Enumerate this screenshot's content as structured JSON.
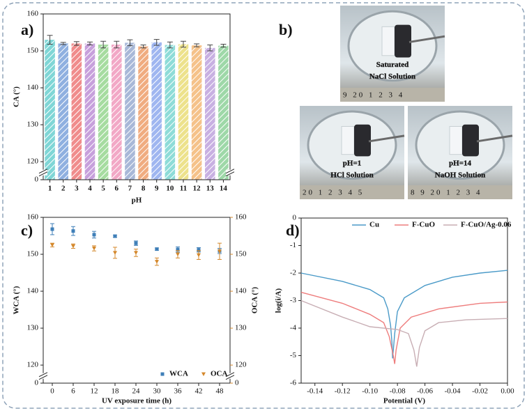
{
  "chart_data": [
    {
      "type": "bar",
      "label": "a)",
      "xlabel": "pH",
      "ylabel": "CA (°)",
      "categories": [
        "1",
        "2",
        "3",
        "4",
        "5",
        "6",
        "7",
        "8",
        "9",
        "10",
        "11",
        "12",
        "13",
        "14"
      ],
      "values": [
        153.0,
        152.0,
        152.0,
        152.0,
        151.7,
        151.7,
        152.2,
        151.2,
        152.3,
        151.6,
        151.8,
        151.5,
        150.8,
        151.4
      ],
      "errors": [
        1.2,
        0.3,
        0.5,
        0.4,
        0.9,
        0.9,
        0.8,
        0.4,
        0.8,
        0.8,
        0.8,
        0.4,
        0.8,
        0.4
      ],
      "colors": [
        "#7fd6d6",
        "#8fb0e0",
        "#f08c8c",
        "#c7a0dc",
        "#a6dca0",
        "#f2a8c6",
        "#a8b8d8",
        "#f0ac80",
        "#9fb6f0",
        "#8edcd8",
        "#ede28c",
        "#f5c28a",
        "#c8b0e2",
        "#9ed8a8"
      ],
      "ylim": [
        0,
        160
      ],
      "ybreak": [
        1,
        118
      ],
      "yticks": [
        0,
        120,
        130,
        140,
        150,
        160
      ]
    },
    {
      "type": "scatter",
      "label": "c)",
      "xlabel": "UV exposure time (h)",
      "ylabel": "WCA (°)",
      "y2label": "OCA (°)",
      "x": [
        0,
        6,
        12,
        18,
        24,
        30,
        36,
        42,
        48
      ],
      "xlim": [
        -2.6,
        51
      ],
      "xticks": [
        0,
        6,
        12,
        18,
        24,
        30,
        36,
        42,
        48
      ],
      "ylim": [
        0,
        160
      ],
      "ybreak": [
        1,
        118
      ],
      "yticks": [
        0,
        120,
        130,
        140,
        150,
        160
      ],
      "y2lim": [
        0,
        160
      ],
      "y2break": [
        1,
        118
      ],
      "y2ticks": [
        0,
        120,
        130,
        140,
        150,
        160
      ],
      "series": [
        {
          "name": "WCA",
          "color": "#3f7fb8",
          "marker": "square",
          "values": [
            156.8,
            156.3,
            155.3,
            154.9,
            153.0,
            151.4,
            151.3,
            151.2,
            150.9
          ],
          "errors": [
            1.5,
            1.2,
            0.9,
            0.3,
            0.6,
            0.3,
            0.7,
            0.6,
            0.7
          ]
        },
        {
          "name": "OCA",
          "color": "#d4882c",
          "marker": "triangle",
          "axis": "y2",
          "values": [
            152.5,
            152.2,
            151.6,
            150.4,
            150.4,
            148.0,
            150.0,
            149.8,
            150.8
          ],
          "errors": [
            0.5,
            0.6,
            0.7,
            1.5,
            1.0,
            1.0,
            1.0,
            1.2,
            2.2
          ]
        }
      ]
    },
    {
      "type": "line",
      "label": "d)",
      "xlabel": "Potential (V)",
      "ylabel": "log(i/A)",
      "xlim": [
        -0.15,
        0
      ],
      "xticks": [
        -0.14,
        -0.12,
        {
          "value": -0.1,
          "label": "-0.10"
        },
        -0.08,
        -0.06,
        -0.04,
        -0.02,
        {
          "value": 0,
          "label": "0.00"
        }
      ],
      "ylim": [
        -6,
        0
      ],
      "yticks": [
        -6,
        -5,
        -4,
        -3,
        -2,
        -1,
        0
      ],
      "series": [
        {
          "name": "Cu",
          "color": "#4a9ac8",
          "x": [
            -0.15,
            -0.12,
            -0.1,
            -0.09,
            -0.087,
            -0.085,
            -0.084,
            -0.0835,
            -0.082,
            -0.08,
            -0.075,
            -0.06,
            -0.04,
            -0.02,
            0
          ],
          "values": [
            -2.0,
            -2.3,
            -2.6,
            -2.9,
            -3.3,
            -3.9,
            -4.5,
            -5.1,
            -4.2,
            -3.4,
            -2.9,
            -2.45,
            -2.15,
            -2.0,
            -1.9
          ]
        },
        {
          "name": "F-CuO",
          "color": "#ee7d7d",
          "x": [
            -0.15,
            -0.12,
            -0.1,
            -0.09,
            -0.086,
            -0.083,
            -0.082,
            -0.081,
            -0.078,
            -0.07,
            -0.05,
            -0.02,
            0
          ],
          "values": [
            -2.7,
            -3.1,
            -3.5,
            -3.8,
            -4.3,
            -5.0,
            -5.3,
            -4.8,
            -4.0,
            -3.6,
            -3.3,
            -3.1,
            -3.05
          ]
        },
        {
          "name": "F-CuO/Ag-0.06",
          "color": "#c8aeb4",
          "x": [
            -0.15,
            -0.12,
            -0.1,
            -0.08,
            -0.072,
            -0.068,
            -0.066,
            -0.064,
            -0.06,
            -0.05,
            -0.03,
            0
          ],
          "values": [
            -3.0,
            -3.6,
            -3.95,
            -4.05,
            -4.2,
            -4.8,
            -5.4,
            -4.7,
            -4.1,
            -3.8,
            -3.7,
            -3.65
          ]
        }
      ]
    }
  ],
  "photo_panel": {
    "label": "b)",
    "photos": [
      {
        "lines": [
          "Saturated",
          "NaCl Solution"
        ],
        "ruler": "9 20 1 2 3 4"
      },
      {
        "lines": [
          "pH=1",
          "HCl Solution"
        ],
        "ruler": "20 1 2 3 4 5"
      },
      {
        "lines": [
          "pH=14",
          "NaOH Solution"
        ],
        "ruler": "8 9 20 1 2 3 4"
      }
    ]
  }
}
